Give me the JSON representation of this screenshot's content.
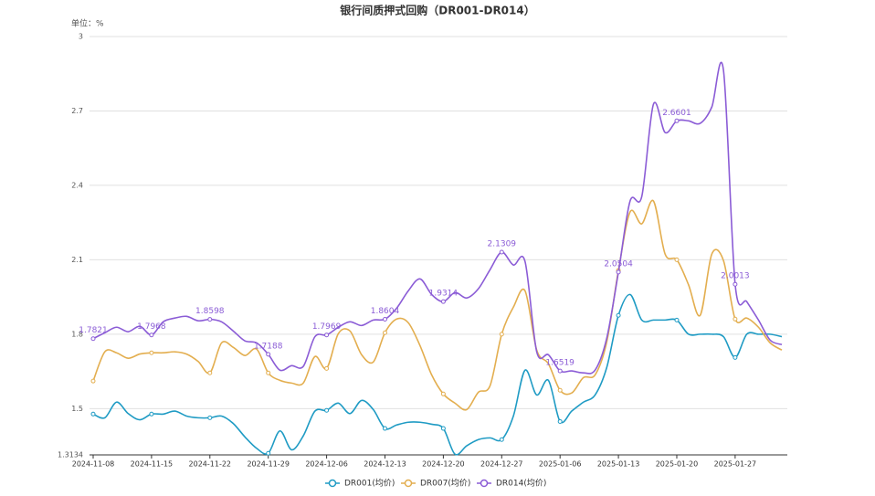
{
  "chart_data": {
    "type": "line",
    "title": "银行间质押式回购（DR001-DR014）",
    "unit": "单位：%",
    "categories": [
      "2024-11-08",
      null,
      null,
      null,
      null,
      "2024-11-15",
      null,
      null,
      null,
      null,
      "2024-11-22",
      null,
      null,
      null,
      null,
      "2024-11-29",
      null,
      null,
      null,
      null,
      "2024-12-06",
      null,
      null,
      null,
      null,
      "2024-12-13",
      null,
      null,
      null,
      null,
      "2024-12-20",
      null,
      null,
      null,
      null,
      "2024-12-27",
      null,
      null,
      null,
      null,
      "2025-01-06",
      null,
      null,
      null,
      null,
      "2025-01-13",
      null,
      null,
      null,
      null,
      "2025-01-20",
      null,
      null,
      null,
      null,
      "2025-01-27",
      null,
      null,
      null,
      null
    ],
    "ylim": [
      1.3134,
      3
    ],
    "yticks": [
      1.3134,
      1.5,
      1.8,
      2.1,
      2.4,
      2.7,
      3
    ],
    "grid": true,
    "legend": "bottom",
    "series": [
      {
        "name": "DR001(均价)",
        "color": "#1f9bc4",
        "values": [
          1.478,
          1.463,
          1.526,
          1.48,
          1.455,
          1.478,
          1.478,
          1.49,
          1.47,
          1.463,
          1.463,
          1.47,
          1.44,
          1.386,
          1.34,
          1.32,
          1.41,
          1.334,
          1.39,
          1.49,
          1.493,
          1.522,
          1.48,
          1.533,
          1.496,
          1.42,
          1.434,
          1.445,
          1.445,
          1.437,
          1.42,
          1.316,
          1.35,
          1.375,
          1.382,
          1.375,
          1.47,
          1.655,
          1.555,
          1.614,
          1.448,
          1.49,
          1.526,
          1.555,
          1.666,
          1.876,
          1.96,
          1.857,
          1.857,
          1.857,
          1.857,
          1.8,
          1.8,
          1.8,
          1.79,
          1.706,
          1.8,
          1.8,
          1.8,
          1.79
        ]
      },
      {
        "name": "DR007(均价)",
        "color": "#e3ae4f",
        "values": [
          1.611,
          1.729,
          1.725,
          1.703,
          1.72,
          1.725,
          1.725,
          1.729,
          1.72,
          1.69,
          1.644,
          1.765,
          1.747,
          1.714,
          1.74,
          1.644,
          1.614,
          1.603,
          1.603,
          1.71,
          1.662,
          1.802,
          1.813,
          1.717,
          1.688,
          1.806,
          1.861,
          1.846,
          1.754,
          1.636,
          1.559,
          1.522,
          1.496,
          1.566,
          1.592,
          1.8,
          1.909,
          1.975,
          1.736,
          1.681,
          1.574,
          1.563,
          1.625,
          1.636,
          1.769,
          2.057,
          2.293,
          2.245,
          2.337,
          2.123,
          2.1,
          2.0,
          1.876,
          2.123,
          2.097,
          1.861,
          1.865,
          1.828,
          1.765,
          1.736
        ]
      },
      {
        "name": "DR014(均价)",
        "color": "#8b5cd6",
        "values": [
          1.7821,
          1.806,
          1.828,
          1.81,
          1.832,
          1.7968,
          1.85,
          1.865,
          1.872,
          1.854,
          1.8598,
          1.85,
          1.813,
          1.773,
          1.765,
          1.7188,
          1.655,
          1.673,
          1.67,
          1.79,
          1.7969,
          1.828,
          1.85,
          1.835,
          1.857,
          1.8604,
          1.905,
          1.975,
          2.023,
          1.96,
          1.9314,
          1.968,
          1.946,
          1.983,
          2.06,
          2.1309,
          2.079,
          2.093,
          1.729,
          1.717,
          1.6519,
          1.652,
          1.644,
          1.655,
          1.784,
          2.0504,
          2.337,
          2.355,
          2.727,
          2.613,
          2.6601,
          2.66,
          2.65,
          2.716,
          2.864,
          2.0013,
          1.931,
          1.857,
          1.776,
          1.758
        ]
      }
    ]
  }
}
